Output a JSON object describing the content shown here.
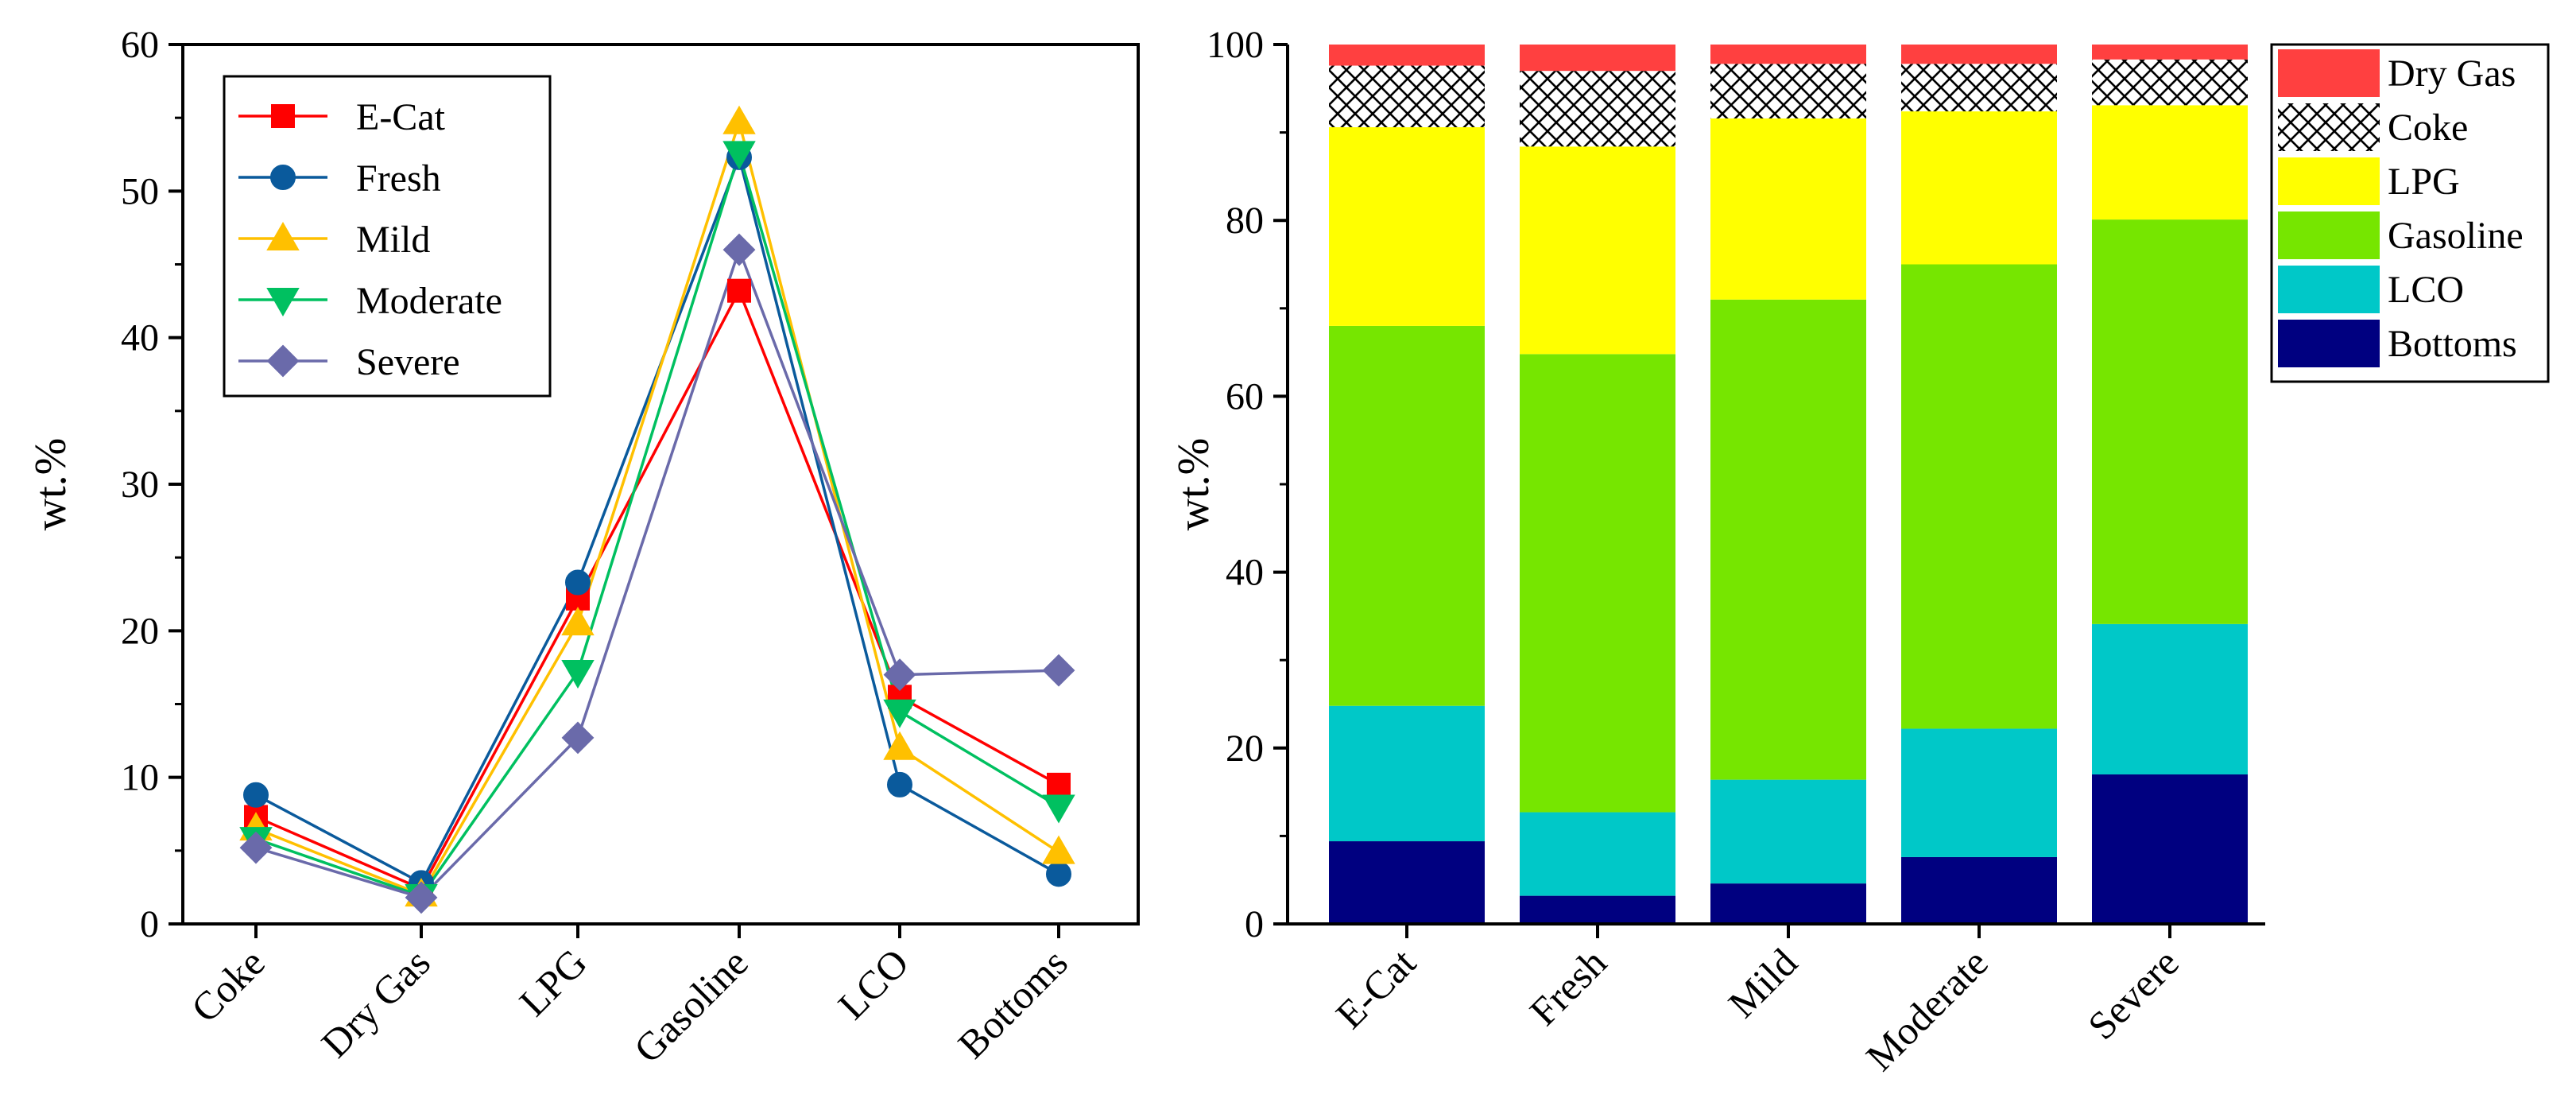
{
  "chart_data": [
    {
      "type": "line",
      "title": "",
      "xlabel": "",
      "ylabel": "wt.%",
      "ylim": [
        0,
        60
      ],
      "yticks": [
        0,
        10,
        20,
        30,
        40,
        50,
        60
      ],
      "categories": [
        "Coke",
        "Dry Gas",
        "LPG",
        "Gasoline",
        "LCO",
        "Bottoms"
      ],
      "legend_position": "top-left",
      "series": [
        {
          "name": "E-Cat",
          "marker": "square",
          "color": "#FF0000",
          "values": [
            7.3,
            2.4,
            22.2,
            43.2,
            15.5,
            9.5
          ]
        },
        {
          "name": "Fresh",
          "marker": "circle",
          "color": "#0A5A9C",
          "values": [
            8.8,
            2.8,
            23.3,
            52.3,
            9.5,
            3.4
          ]
        },
        {
          "name": "Mild",
          "marker": "triangle-up",
          "color": "#FFC000",
          "values": [
            6.5,
            2.0,
            20.5,
            54.7,
            12.0,
            4.9
          ]
        },
        {
          "name": "Moderate",
          "marker": "triangle-down",
          "color": "#00C060",
          "values": [
            5.8,
            1.9,
            17.2,
            52.6,
            14.5,
            8.0
          ]
        },
        {
          "name": "Severe",
          "marker": "diamond",
          "color": "#6A6AAA",
          "values": [
            5.2,
            1.8,
            12.7,
            46.0,
            17.0,
            17.3
          ]
        }
      ]
    },
    {
      "type": "bar",
      "stacked": true,
      "title": "",
      "xlabel": "",
      "ylabel": "wt.%",
      "ylim": [
        0,
        100
      ],
      "yticks": [
        0,
        20,
        40,
        60,
        80,
        100
      ],
      "categories": [
        "E-Cat",
        "Fresh",
        "Mild",
        "Moderate",
        "Severe"
      ],
      "legend_position": "outside-right",
      "series": [
        {
          "name": "Bottoms",
          "color": "#000080",
          "values": [
            9.4,
            3.2,
            4.6,
            7.6,
            17.0
          ]
        },
        {
          "name": "LCO",
          "color": "#00C8C8",
          "values": [
            15.4,
            9.5,
            11.8,
            14.6,
            17.1
          ]
        },
        {
          "name": "Gasoline",
          "color": "#76E600",
          "values": [
            43.2,
            52.1,
            54.6,
            52.8,
            46.0
          ]
        },
        {
          "name": "LPG",
          "color": "#FFFF00",
          "values": [
            22.6,
            23.6,
            20.6,
            17.4,
            13.0
          ]
        },
        {
          "name": "Coke",
          "color": "#FFFFFF",
          "pattern": "crosshatch",
          "values": [
            7.0,
            8.6,
            6.2,
            5.4,
            5.2
          ]
        },
        {
          "name": "Dry Gas",
          "color": "#FF4040",
          "values": [
            2.4,
            3.0,
            2.2,
            2.2,
            1.7
          ]
        }
      ],
      "legend_order": [
        "Dry Gas",
        "Coke",
        "LPG",
        "Gasoline",
        "LCO",
        "Bottoms"
      ]
    }
  ]
}
